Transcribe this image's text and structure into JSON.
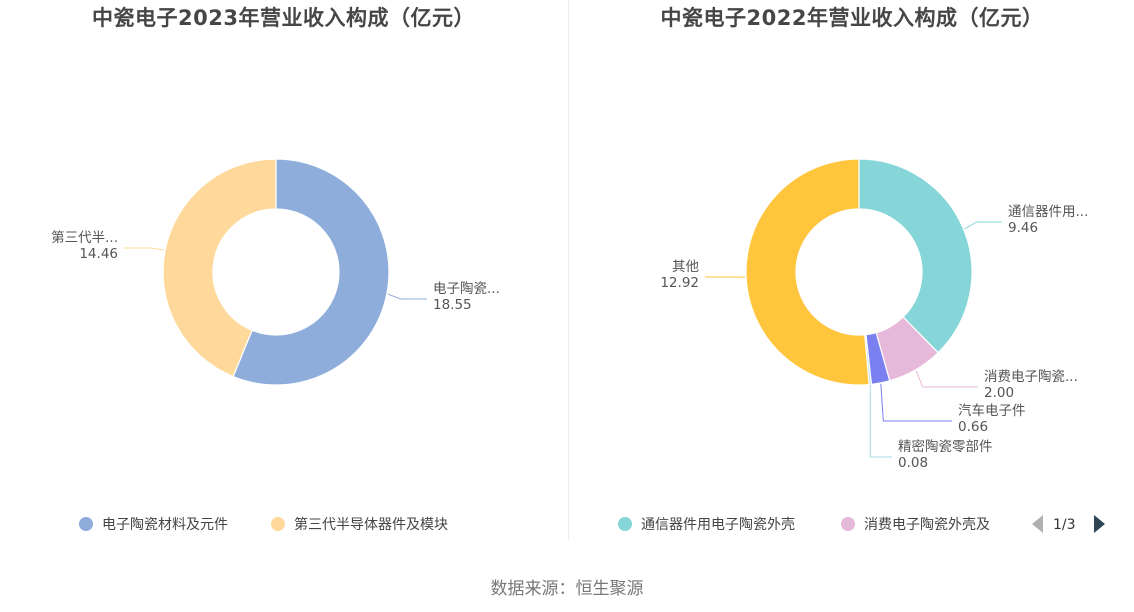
{
  "chart_data": [
    {
      "type": "pie",
      "donut": true,
      "title": "中瓷电子2023年营业收入构成（亿元）",
      "slices": [
        {
          "name": "电子陶瓷材料及元件",
          "short_label": "电子陶瓷...",
          "value": 18.55,
          "value_label": "18.55",
          "color": "#8eaddb"
        },
        {
          "name": "第三代半导体器件及模块",
          "short_label": "第三代半...",
          "value": 14.46,
          "value_label": "14.46",
          "color": "#ffd89b"
        }
      ],
      "legend": [
        "电子陶瓷材料及元件",
        "第三代半导体器件及模块"
      ],
      "legend_placement": "bottom"
    },
    {
      "type": "pie",
      "donut": true,
      "title": "中瓷电子2022年营业收入构成（亿元）",
      "slices": [
        {
          "name": "通信器件用电子陶瓷外壳",
          "short_label": "通信器件用...",
          "value": 9.46,
          "value_label": "9.46",
          "color": "#86d5d8"
        },
        {
          "name": "消费电子陶瓷外壳及",
          "short_label": "消费电子陶瓷...",
          "value": 2.0,
          "value_label": "2.00",
          "color": "#e6b8da"
        },
        {
          "name": "汽车电子件",
          "short_label": "汽车电子件",
          "value": 0.66,
          "value_label": "0.66",
          "color": "#7a80f0"
        },
        {
          "name": "精密陶瓷零部件",
          "short_label": "精密陶瓷零部件",
          "value": 0.08,
          "value_label": "0.08",
          "color": "#a9dbe8"
        },
        {
          "name": "其他",
          "short_label": "其他",
          "value": 12.92,
          "value_label": "12.92",
          "color": "#ffc53d"
        }
      ],
      "legend": [
        "通信器件用电子陶瓷外壳",
        "消费电子陶瓷外壳及"
      ],
      "legend_placement": "bottom",
      "legend_page": "1/3"
    }
  ],
  "icons": {
    "prev": "triangle-left-icon",
    "next": "triangle-right-icon"
  },
  "colors": {
    "title": "#464646",
    "pager_disabled": "#b0b0b0",
    "pager_active": "#2f4554"
  },
  "source": "数据来源：恒生聚源"
}
